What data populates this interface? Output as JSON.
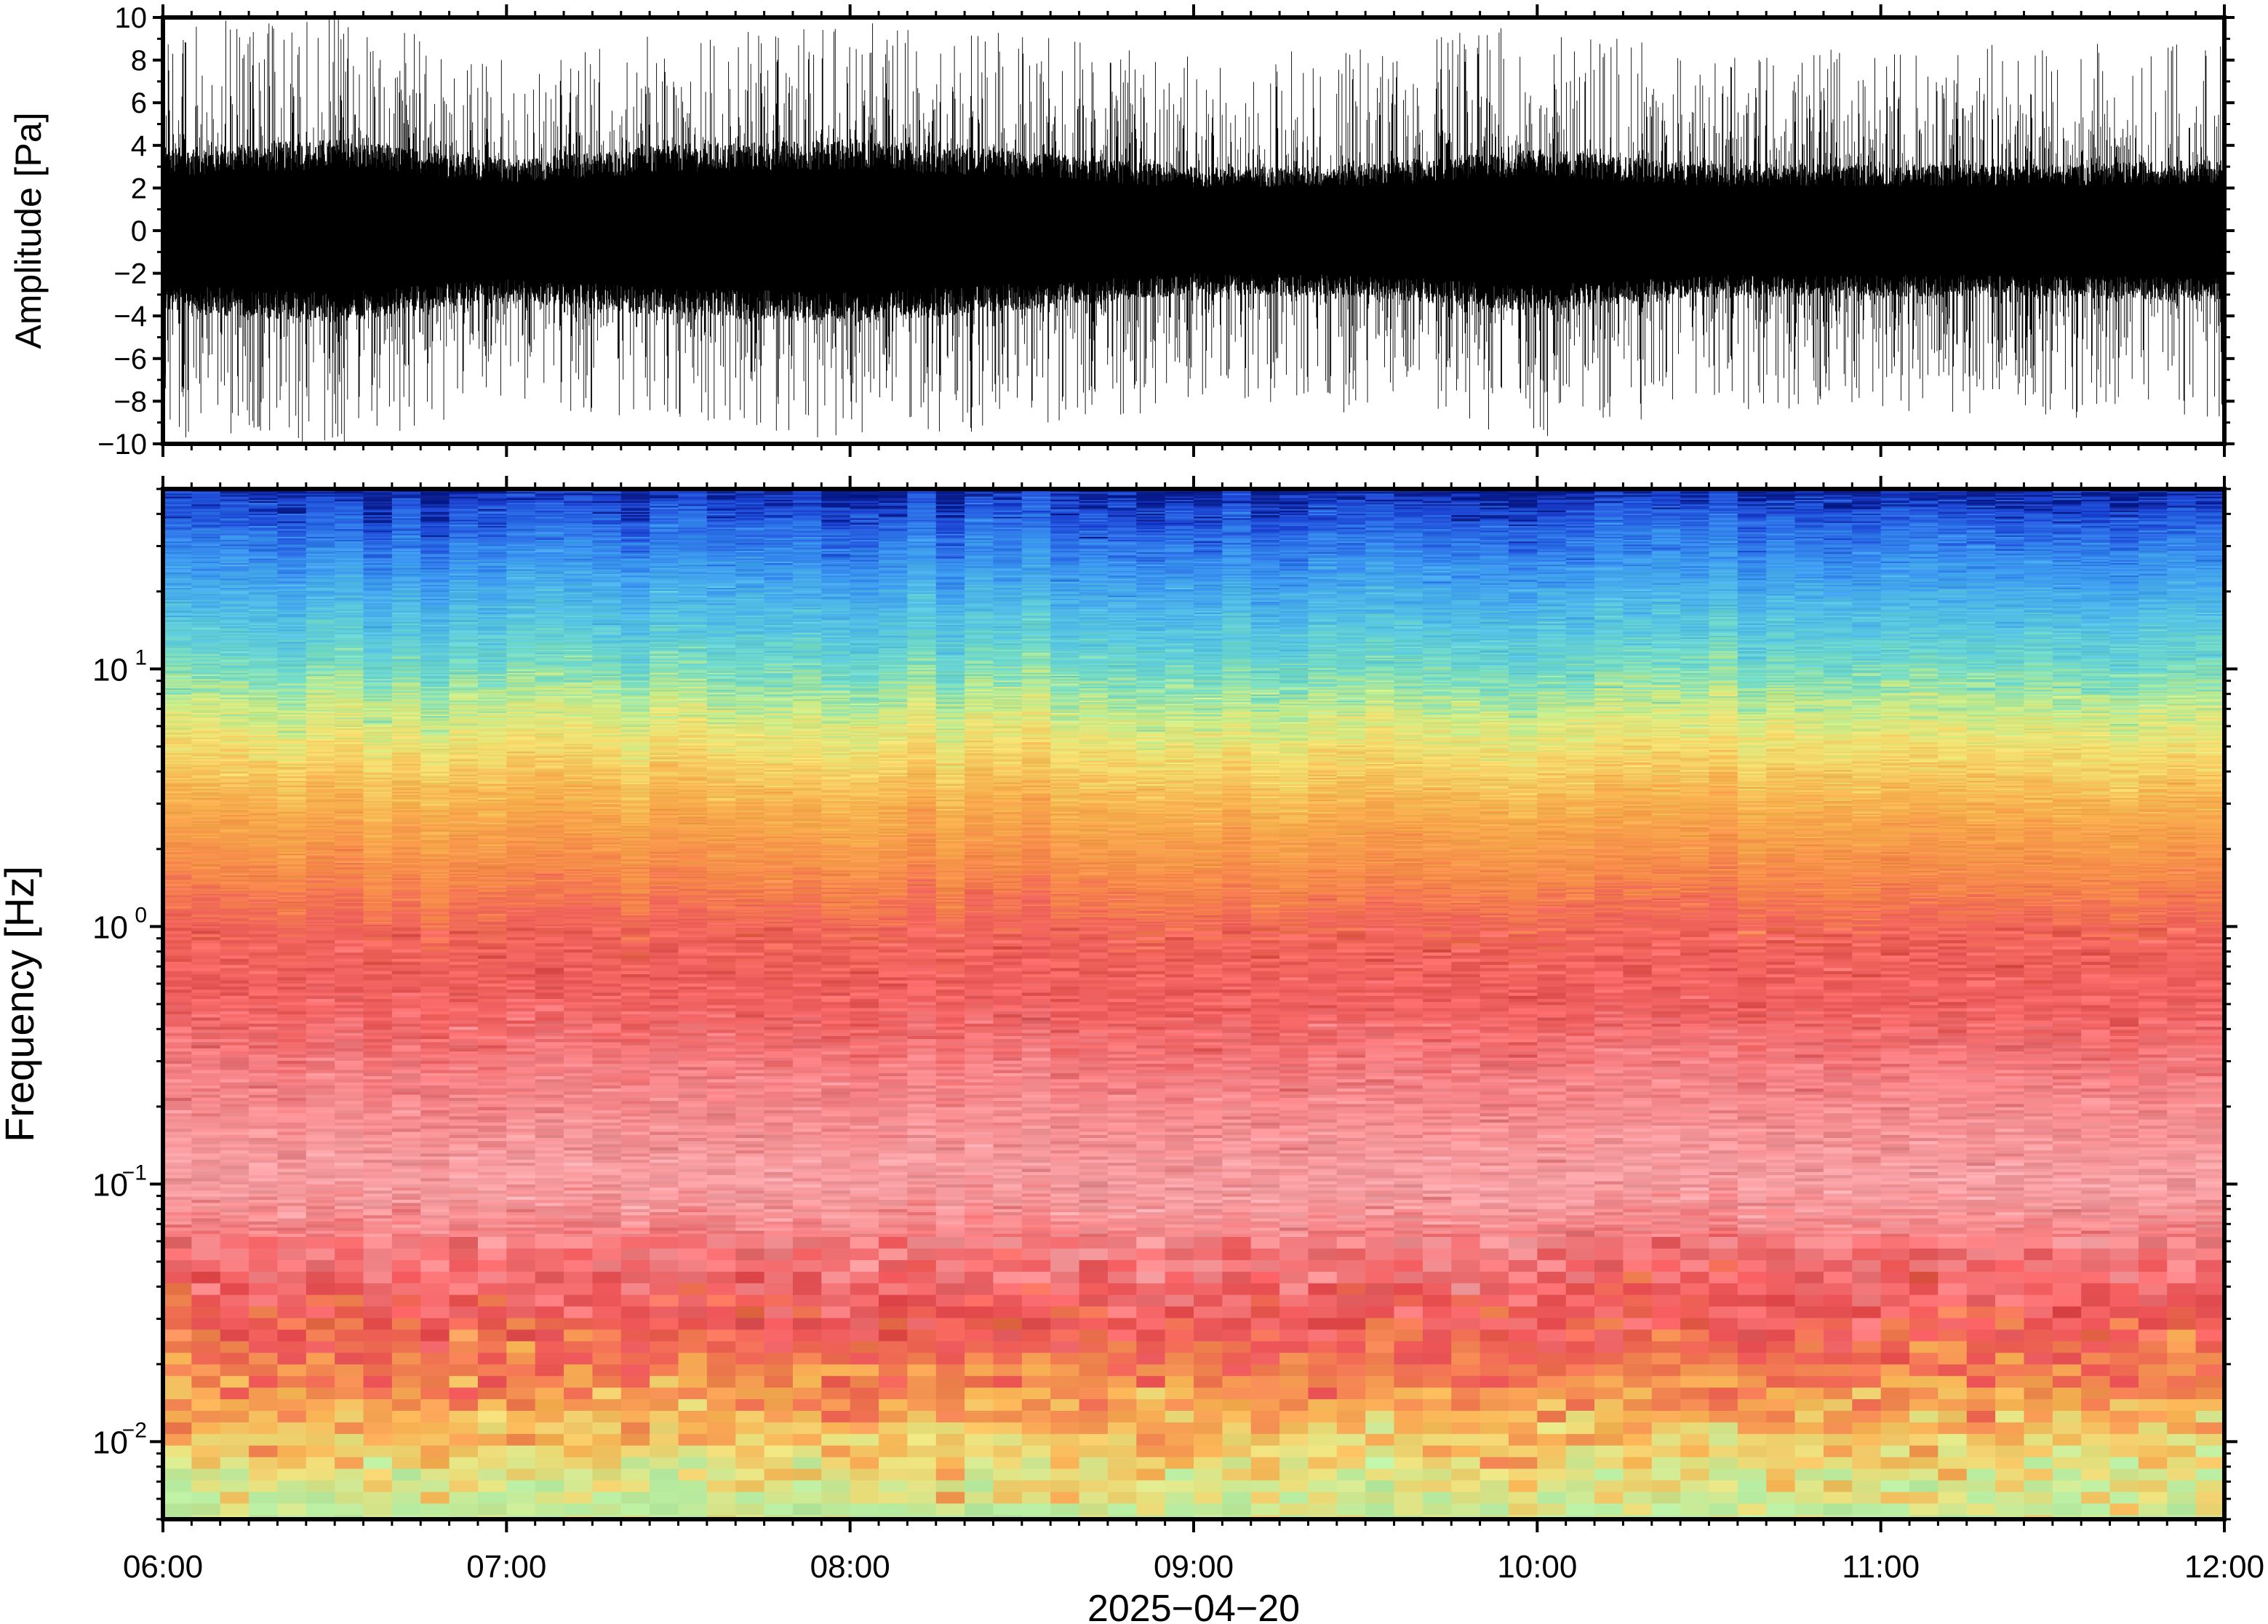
{
  "chart_data": [
    {
      "type": "line",
      "panel": "waveform",
      "ylabel": "Amplitude [Pa]",
      "ylim": [
        -10,
        10
      ],
      "yticks": [
        -10,
        -8,
        -6,
        -4,
        -2,
        0,
        2,
        4,
        6,
        8,
        10
      ],
      "ytick_labels": [
        "−10",
        "−8",
        "−6",
        "−4",
        "−2",
        "0",
        "2",
        "4",
        "6",
        "8",
        "10"
      ],
      "xlim": [
        "06:00",
        "12:00"
      ],
      "grid": false,
      "line_color": "#000000",
      "envelope": {
        "time": [
          "06:00",
          "06:30",
          "07:00",
          "07:30",
          "08:00",
          "08:30",
          "09:00",
          "09:30",
          "10:00",
          "10:30",
          "11:00",
          "11:30",
          "12:00"
        ],
        "dense_band_pa": [
          3.2,
          3.6,
          2.8,
          3.4,
          3.6,
          3.1,
          2.5,
          2.6,
          3.2,
          2.6,
          2.6,
          2.6,
          2.8
        ],
        "peak_pa": [
          9.5,
          10,
          8,
          9,
          9.5,
          9,
          8,
          8.5,
          9.5,
          8,
          8.5,
          8.5,
          8.5
        ]
      }
    },
    {
      "type": "heatmap",
      "panel": "spectrogram",
      "ylabel": "Frequency [Hz]",
      "yscale": "log",
      "ylim_hz": [
        0.005,
        50
      ],
      "yticks_hz": [
        0.01,
        0.1,
        1,
        10
      ],
      "ytick_labels": [
        {
          "base": "10",
          "exp": "−2"
        },
        {
          "base": "10",
          "exp": "−1"
        },
        {
          "base": "10",
          "exp": "0"
        },
        {
          "base": "10",
          "exp": "1"
        }
      ],
      "xlim": [
        "06:00",
        "12:00"
      ],
      "colormap": "spectral (blue = low power, red = high power)",
      "frequency_profile": [
        {
          "freq_hz": 50,
          "color": "#081c8c"
        },
        {
          "freq_hz": 45,
          "color": "#1a3fd0"
        },
        {
          "freq_hz": 35,
          "color": "#2a6ae6"
        },
        {
          "freq_hz": 25,
          "color": "#3c9af0"
        },
        {
          "freq_hz": 15,
          "color": "#56c4e2"
        },
        {
          "freq_hz": 10,
          "color": "#74dcc4"
        },
        {
          "freq_hz": 7,
          "color": "#c8ec88"
        },
        {
          "freq_hz": 5,
          "color": "#f4e070"
        },
        {
          "freq_hz": 3,
          "color": "#f7b04c"
        },
        {
          "freq_hz": 1.5,
          "color": "#f6874a"
        },
        {
          "freq_hz": 1,
          "color": "#f0645a"
        },
        {
          "freq_hz": 0.5,
          "color": "#f06060"
        },
        {
          "freq_hz": 0.25,
          "color": "#f48286"
        },
        {
          "freq_hz": 0.1,
          "color": "#f7a2a6"
        },
        {
          "freq_hz": 0.05,
          "color": "#f27072"
        },
        {
          "freq_hz": 0.03,
          "color": "#ec5255"
        },
        {
          "freq_hz": 0.02,
          "color": "#f07a50"
        },
        {
          "freq_hz": 0.012,
          "color": "#f8b454"
        },
        {
          "freq_hz": 0.008,
          "color": "#eae07c"
        },
        {
          "freq_hz": 0.005,
          "color": "#b8eca0"
        }
      ]
    }
  ],
  "xaxis": {
    "ticks": [
      "06:00",
      "07:00",
      "08:00",
      "09:00",
      "10:00",
      "11:00",
      "12:00"
    ],
    "date_label": "2025−04−20"
  }
}
